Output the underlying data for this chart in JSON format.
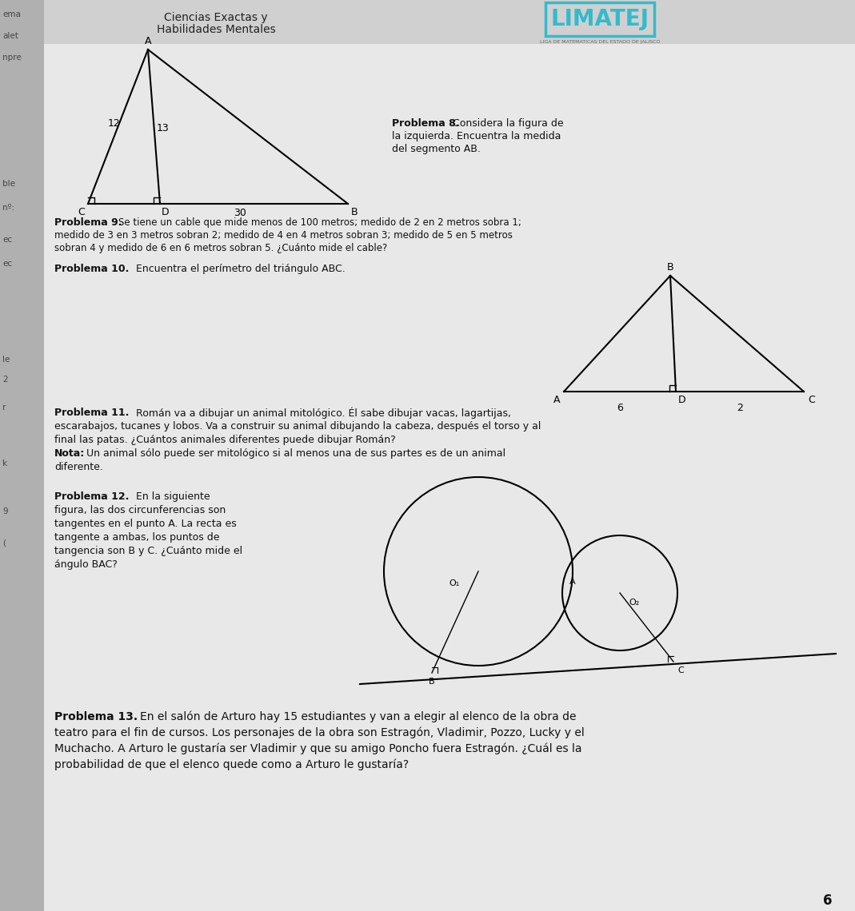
{
  "bg_color": "#c8c8c8",
  "page_bg": "#e8e8e8",
  "left_strip_color": "#b0b0b0",
  "text_color": "#111111",
  "header_text1": "Ciencias Exactas y",
  "header_text2": "Habilidades Mentales",
  "logo_text": "LIMATEJ",
  "logo_subtext": "LIGA DE MATEMATICAS DEL ESTADO DE JALISCO",
  "logo_color": "#33bbcc",
  "prob8_bold": "Problema 8.",
  "prob8_rest": "Considera la figura de\nla izquierda. Encuentra la medida\ndel segmento AB.",
  "prob9_bold": "Problema 9.",
  "prob9_rest": "Se tiene un cable que mide menos de 100 metros; medido de 2 en 2 metros sobra 1;\nmedido de 3 en 3 metros sobran 2; medido de 4 en 4 metros sobran 3; medido de 5 en 5 metros\nsobran 4 y medido de 6 en 6 metros sobran 5. ¿Cuánto mide el cable?",
  "prob10_bold": "Problema 10.",
  "prob10_rest": "Encuentra el perímetro del triángulo ABC.",
  "prob11_bold": "Problema 11.",
  "prob11_rest1": "Román va a dibujar un animal mitológico. Él sabe dibujar vacas, lagartijas,",
  "prob11_rest2": "escarabajos, tucanes y lobos. Va a construir su animal dibujando la cabeza, después el torso y al",
  "prob11_rest3": "final las patas. ¿Cuántos animales diferentes puede dibujar Román?",
  "prob11_nota_bold": "Nota:",
  "prob11_nota_rest": "Un animal sólo puede ser mitológico si al menos una de sus partes es de un animal",
  "prob11_rest4": "diferente.",
  "prob12_bold": "Problema 12.",
  "prob12_rest1": "En la siguiente",
  "prob12_rest2": "figura, las dos circunferencias son",
  "prob12_rest3": "tangentes en el punto A. La recta es",
  "prob12_rest4": "tangente a ambas, los puntos de",
  "prob12_rest5": "tangencia son B y C. ¿Cuánto mide el",
  "prob12_rest6": "ángulo BAC?",
  "prob13_bold": "Problema 13.",
  "prob13_rest1": "En el salón de Arturo hay 15 estudiantes y van a elegir al elenco de la obra de",
  "prob13_rest2": "teatro para el fin de cursos. Los personajes de la obra son Estragón, Vladimir, Pozzo, Lucky y el",
  "prob13_rest3": "Muchacho. A Arturo le gustaría ser Vladimir y que su amigo Poncho fuera Estragón. ¿Cuál es la",
  "prob13_rest4": "probabilidad de que el elenco quede como a Arturo le gustaría?",
  "page_num": "6",
  "left_margin_labels": [
    "ema",
    "alet",
    "npre",
    "ble",
    "nº:",
    "ec",
    "ec",
    "le",
    "2",
    "r",
    "k",
    "9",
    "("
  ]
}
